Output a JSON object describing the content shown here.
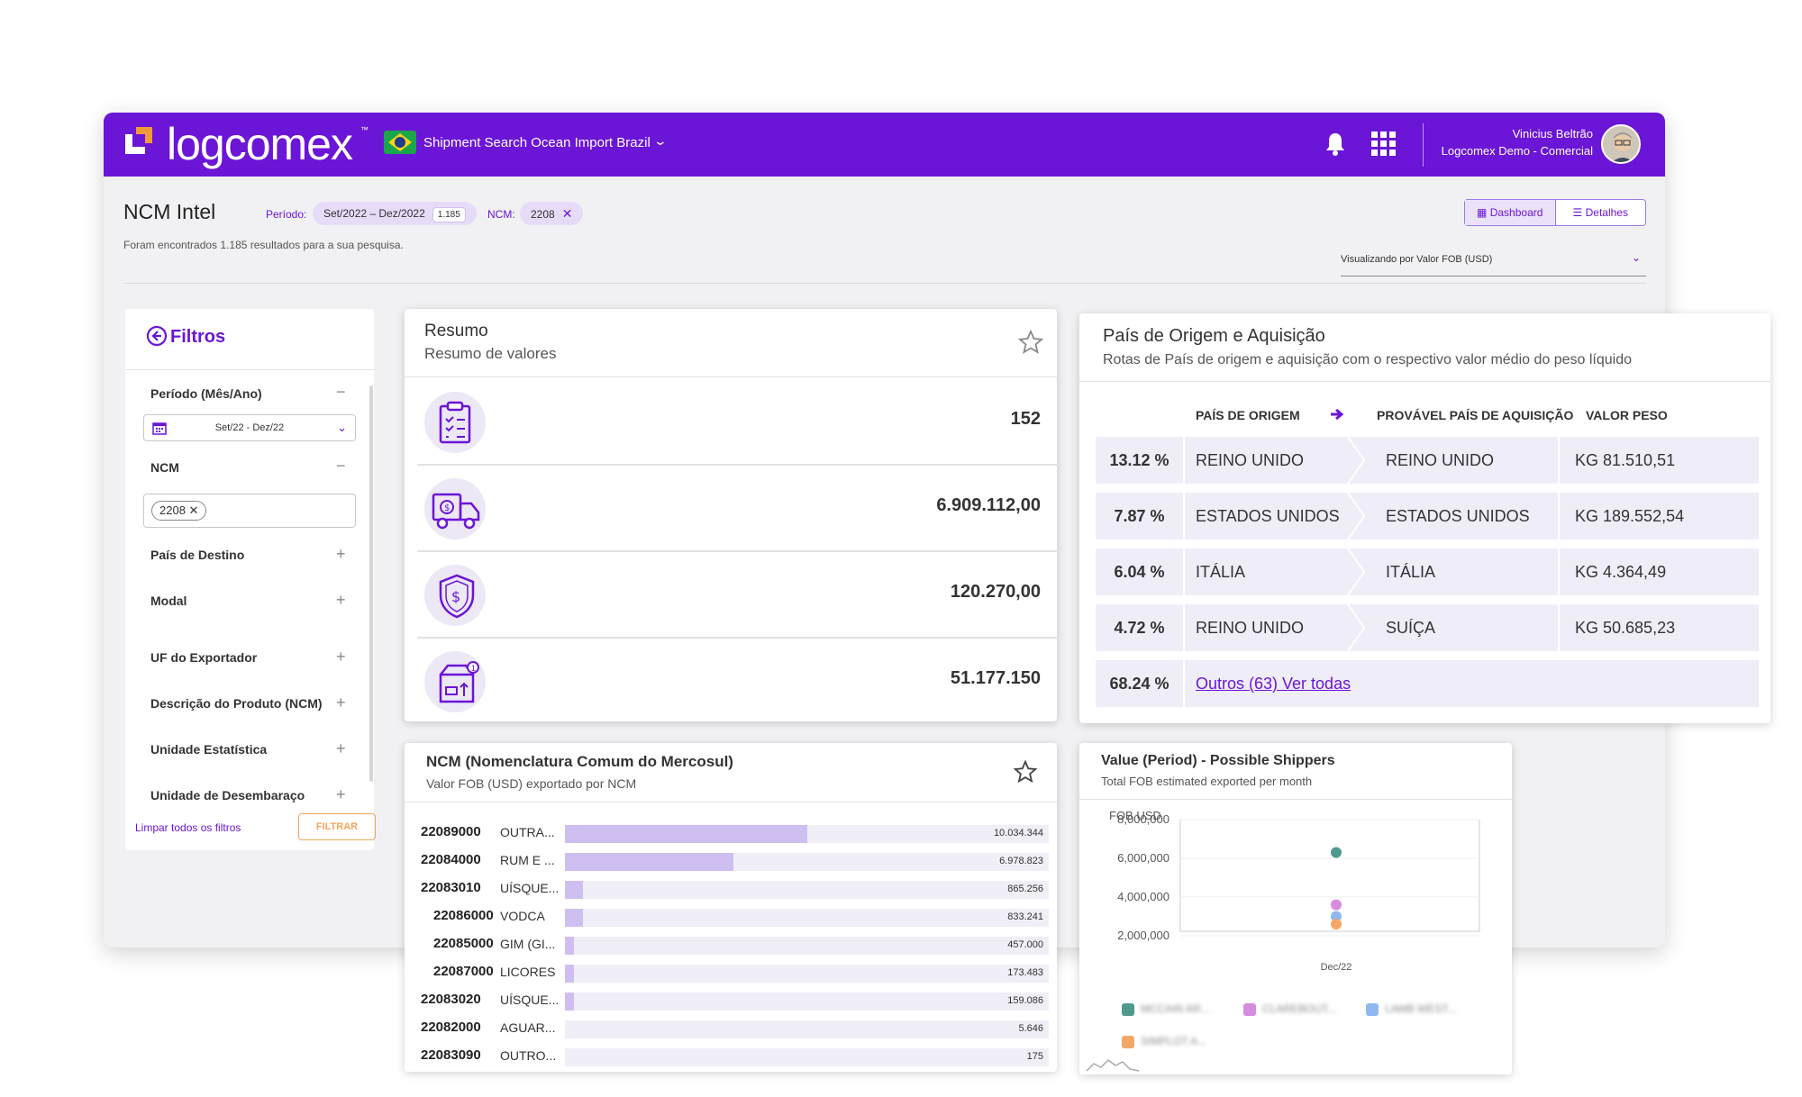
{
  "topbar": {
    "logo": "logcomex",
    "logo_tm": "™",
    "app_title": "Shipment Search Ocean Import Brazil",
    "user_name": "Vinicius Beltrão",
    "user_org": "Logcomex Demo - Comercial"
  },
  "header": {
    "title": "NCM Intel",
    "periodo_label": "Período:",
    "periodo_value": "Set/2022 – Dez/2022",
    "periodo_count": "1.185",
    "ncm_label": "NCM:",
    "ncm_value": "2208",
    "results_text": "Foram encontrados 1.185 resultados para a sua pesquisa.",
    "view_dashboard": "Dashboard",
    "view_detalhes": "Detalhes",
    "view_select": "Visualizando por Valor FOB (USD)"
  },
  "filters": {
    "title": "Filtros",
    "periodo_label": "Período (Mês/Ano)",
    "periodo_value": "Set/22 - Dez/22",
    "ncm_label": "NCM",
    "ncm_tag": "2208",
    "items": [
      "País de Destino",
      "Modal",
      "UF do Exportador",
      "Descrição do Produto (NCM)",
      "Unidade Estatística",
      "Unidade de Desembaraço"
    ],
    "clear_all": "Limpar todos os filtros",
    "filter_button": "FILTRAR"
  },
  "resumo": {
    "title": "Resumo",
    "subtitle": "Resumo de valores",
    "values": [
      "152",
      "6.909.112,00",
      "120.270,00",
      "51.177.150"
    ],
    "icons": [
      "clipboard-icon",
      "delivery-truck-icon",
      "shield-dollar-icon",
      "package-icon"
    ]
  },
  "pais": {
    "title": "País de Origem e Aquisição",
    "subtitle": "Rotas de País de origem e aquisição com o respectivo valor médio do peso líquido",
    "col_origem": "PAÍS DE ORIGEM",
    "col_aquisicao": "PROVÁVEL PAÍS DE AQUISIÇÃO",
    "col_peso": "VALOR PESO",
    "rows": [
      {
        "pct": "13.12 %",
        "origem": "REINO UNIDO",
        "aquisicao": "REINO UNIDO",
        "peso": "KG 81.510,51"
      },
      {
        "pct": "7.87 %",
        "origem": "ESTADOS UNIDOS",
        "aquisicao": "ESTADOS UNIDOS",
        "peso": "KG 189.552,54"
      },
      {
        "pct": "6.04 %",
        "origem": "ITÁLIA",
        "aquisicao": "ITÁLIA",
        "peso": "KG 4.364,49"
      },
      {
        "pct": "4.72 %",
        "origem": "REINO UNIDO",
        "aquisicao": "SUÍÇA",
        "peso": "KG 50.685,23"
      }
    ],
    "others_pct": "68.24 %",
    "others_link": "Outros (63) Ver todas"
  },
  "ncm_chart": {
    "title": "NCM (Nomenclatura Comum do Mercosul)",
    "subtitle": "Valor FOB (USD) exportado por NCM",
    "rows": [
      {
        "code": "22089000",
        "name": "OUTRA...",
        "value": "10.034.344",
        "num": 10034344
      },
      {
        "code": "22084000",
        "name": "RUM E ...",
        "value": "6.978.823",
        "num": 6978823
      },
      {
        "code": "22083010",
        "name": "UÍSQUE...",
        "value": "865.256",
        "num": 865256
      },
      {
        "code": "22086000",
        "name": "VODCA",
        "value": "833.241",
        "num": 833241
      },
      {
        "code": "22085000",
        "name": "GIM (GI...",
        "value": "457.000",
        "num": 457000
      },
      {
        "code": "22087000",
        "name": "LICORES",
        "value": "173.483",
        "num": 173483
      },
      {
        "code": "22083020",
        "name": "UÍSQUE...",
        "value": "159.086",
        "num": 159086
      },
      {
        "code": "22082000",
        "name": "AGUAR...",
        "value": "5.646",
        "num": 5646
      },
      {
        "code": "22083090",
        "name": "OUTRO...",
        "value": "175",
        "num": 175
      }
    ]
  },
  "shippers": {
    "title": "Value (Period) - Possible Shippers",
    "subtitle": "Total FOB estimated exported per month",
    "ylabel": "FOB USD",
    "legend": [
      "MCCAIN AR...",
      "CLAREBOUT...",
      "LAMB WEST...",
      "SIMPLOT A..."
    ],
    "colors": [
      "#4f9a8c",
      "#d78ce0",
      "#8fb8f0",
      "#f3a868"
    ]
  },
  "chart_data": {
    "type": "scatter",
    "title": "Value (Period) - Possible Shippers",
    "ylabel": "FOB USD",
    "x": [
      "Dec/22"
    ],
    "ylim": [
      2000000,
      8000000
    ],
    "yticks": [
      "8,000,000",
      "6,000,000",
      "4,000,000",
      "2,000,000"
    ],
    "series": [
      {
        "name": "MCCAIN AR...",
        "values": [
          6300000
        ]
      },
      {
        "name": "CLAREBOUT...",
        "values": [
          3600000
        ]
      },
      {
        "name": "LAMB WEST...",
        "values": [
          3000000
        ]
      },
      {
        "name": "SIMPLOT A...",
        "values": [
          2600000
        ]
      }
    ]
  }
}
